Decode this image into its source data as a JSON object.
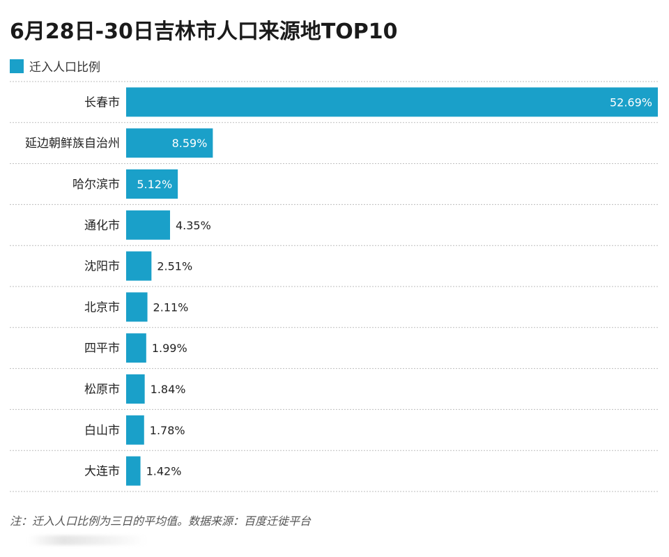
{
  "title": "6月28日-30日吉林市人口来源地TOP10",
  "colors": {
    "bar": "#1aa0c9",
    "gridline": "#bdbdbd",
    "label_inside": "#ffffff",
    "label_outside": "#222222"
  },
  "footnote": "注：迁入人口比例为三日的平均值。数据来源：百度迁徙平台",
  "chart_data": {
    "type": "bar",
    "orientation": "horizontal",
    "title": "6月28日-30日吉林市人口来源地TOP10",
    "legend": [
      "迁入人口比例"
    ],
    "legend_position": "top-left",
    "categories": [
      "长春市",
      "延边朝鲜族自治州",
      "哈尔滨市",
      "通化市",
      "沈阳市",
      "北京市",
      "四平市",
      "松原市",
      "白山市",
      "大连市"
    ],
    "values": [
      52.69,
      8.59,
      5.12,
      4.35,
      2.51,
      2.11,
      1.99,
      1.84,
      1.78,
      1.42
    ],
    "value_labels": [
      "52.69%",
      "8.59%",
      "5.12%",
      "4.35%",
      "2.51%",
      "2.11%",
      "1.99%",
      "1.84%",
      "1.78%",
      "1.42%"
    ],
    "unit": "%",
    "xlim": [
      0,
      52.69
    ],
    "grid": true,
    "xlabel": "",
    "ylabel": ""
  }
}
